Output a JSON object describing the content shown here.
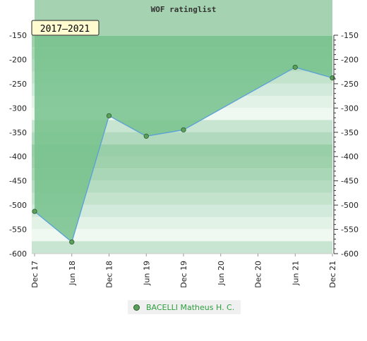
{
  "chart_data": {
    "type": "area",
    "title": "WOF ratinglist",
    "period_badge": "2017–2021",
    "categories": [
      "Dec 17",
      "Jun 18",
      "Dec 18",
      "Jun 19",
      "Dec 19",
      "Jun 20",
      "Dec 20",
      "Jun 21",
      "Dec 21"
    ],
    "yticks": [
      -150,
      -200,
      -250,
      -300,
      -350,
      -400,
      -450,
      -500,
      -550,
      -600
    ],
    "ylim": [
      -600,
      -150
    ],
    "y_inverted": true,
    "series": [
      {
        "name": "BACELLI Matheus H. C.",
        "points": [
          {
            "x": "Dec 17",
            "y": -513
          },
          {
            "x": "Jun 18",
            "y": -576
          },
          {
            "x": "Dec 18",
            "y": -316
          },
          {
            "x": "Jun 19",
            "y": -358
          },
          {
            "x": "Dec 19",
            "y": -345
          },
          {
            "x": "Jun 21",
            "y": -216
          },
          {
            "x": "Dec 21",
            "y": -238
          }
        ]
      }
    ],
    "legend_position": "bottom-center",
    "colors": {
      "fill": "#77c28d",
      "line": "#5aa0d8",
      "marker": "#5aa05a",
      "legend_text": "#2e9e3e"
    }
  }
}
